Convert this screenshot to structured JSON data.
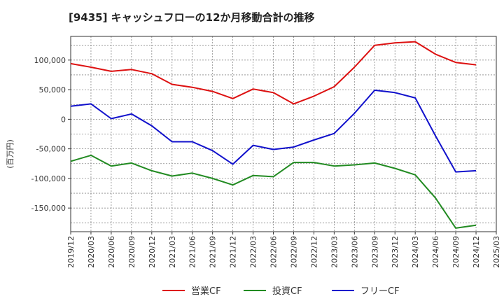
{
  "chart_data": {
    "type": "line",
    "title": "[9435]  キャッシュフローの12か月移動合計の推移",
    "ylabel": "(百万円)",
    "xlabel": "",
    "ylim": [
      -190000,
      140000
    ],
    "yticks": [
      100000,
      50000,
      0,
      -50000,
      -100000,
      -150000
    ],
    "ytick_labels": [
      "100,000",
      "50,000",
      "0",
      "-50,000",
      "-100,000",
      "-150,000"
    ],
    "grid": true,
    "legend_position": "bottom-center",
    "x": [
      "2019/12",
      "2020/03",
      "2020/06",
      "2020/09",
      "2020/12",
      "2021/03",
      "2021/06",
      "2021/09",
      "2021/12",
      "2022/03",
      "2022/06",
      "2022/09",
      "2022/12",
      "2023/03",
      "2023/06",
      "2023/09",
      "2023/12",
      "2024/03",
      "2024/06",
      "2024/09",
      "2024/12",
      "2025/03"
    ],
    "series": [
      {
        "name": "営業CF",
        "color": "#dd1111",
        "values": [
          94000,
          88000,
          81000,
          84000,
          77000,
          59000,
          54000,
          47000,
          35000,
          51000,
          45000,
          26000,
          39000,
          55000,
          88000,
          125000,
          129000,
          131000,
          110000,
          96000,
          92000,
          null
        ]
      },
      {
        "name": "投資CF",
        "color": "#228b22",
        "values": [
          -71000,
          -61000,
          -79000,
          -74000,
          -87000,
          -96000,
          -91000,
          -100000,
          -111000,
          -95000,
          -97000,
          -73000,
          -73000,
          -79000,
          -77000,
          -74000,
          -83000,
          -94000,
          -133000,
          -184000,
          -179000,
          null
        ]
      },
      {
        "name": "フリーCF",
        "color": "#1111cc",
        "values": [
          22000,
          26000,
          1000,
          9000,
          -11000,
          -38000,
          -38000,
          -53000,
          -76000,
          -44000,
          -51000,
          -47000,
          -35000,
          -24000,
          10000,
          49000,
          45000,
          36000,
          -28000,
          -89000,
          -87000,
          null
        ]
      }
    ]
  }
}
